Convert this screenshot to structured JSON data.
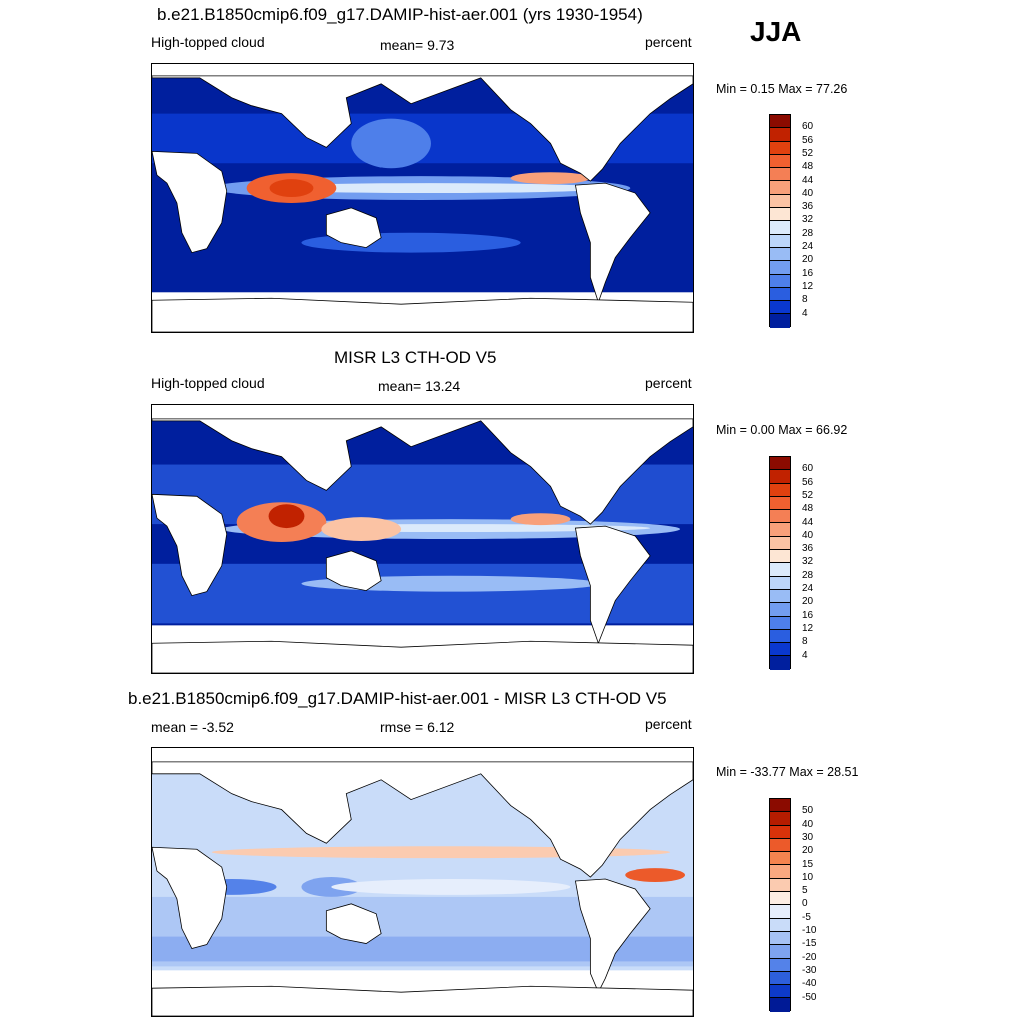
{
  "season": "JJA",
  "panels": [
    {
      "title": "b.e21.B1850cmip6.f09_g17.DAMIP-hist-aer.001 (yrs 1930-1954)",
      "left_label": "High-topped cloud",
      "center_label": "mean=   9.73",
      "unit": "percent",
      "minmax": "Min =   0.15 Max =  77.26",
      "colorbar_labels": [
        "60",
        "56",
        "52",
        "48",
        "44",
        "40",
        "36",
        "32",
        "28",
        "24",
        "20",
        "16",
        "12",
        "8",
        "4"
      ],
      "colors": [
        "#8b0b00",
        "#c12200",
        "#e0410f",
        "#f06030",
        "#f47f55",
        "#f8a07a",
        "#fbc3a4",
        "#fde6d4",
        "#dbeafb",
        "#bcd6fa",
        "#99bcf5",
        "#729df0",
        "#4e7fea",
        "#2a5ee0",
        "#0a38cf",
        "#001f9e"
      ]
    },
    {
      "title": "MISR L3 CTH-OD V5",
      "left_label": "High-topped cloud",
      "center_label": "mean=  13.24",
      "unit": "percent",
      "minmax": "Min =   0.00 Max =  66.92",
      "colorbar_labels": [
        "60",
        "56",
        "52",
        "48",
        "44",
        "40",
        "36",
        "32",
        "28",
        "24",
        "20",
        "16",
        "12",
        "8",
        "4"
      ],
      "colors": [
        "#8b0b00",
        "#c12200",
        "#e0410f",
        "#f06030",
        "#f47f55",
        "#f8a07a",
        "#fbc3a4",
        "#fde6d4",
        "#dbeafb",
        "#bcd6fa",
        "#99bcf5",
        "#729df0",
        "#4e7fea",
        "#2a5ee0",
        "#0a38cf",
        "#001f9e"
      ]
    },
    {
      "title": "b.e21.B1850cmip6.f09_g17.DAMIP-hist-aer.001 - MISR L3 CTH-OD V5",
      "left_label": "mean =  -3.52",
      "center_label": "rmse =   6.12",
      "unit": "percent",
      "minmax": "Min = -33.77 Max =  28.51",
      "colorbar_labels": [
        "50",
        "40",
        "30",
        "20",
        "15",
        "10",
        "5",
        "0",
        "-5",
        "-10",
        "-15",
        "-20",
        "-30",
        "-40",
        "-50"
      ],
      "colors": [
        "#8b0b00",
        "#b51c00",
        "#d8320a",
        "#ec5a2a",
        "#f5844f",
        "#f9a880",
        "#fbcbb0",
        "#fdeee4",
        "#e6eefc",
        "#c9dcf9",
        "#a6c2f4",
        "#7ea3ef",
        "#5482e9",
        "#2d5fdc",
        "#0d3ac9",
        "#001a96"
      ]
    }
  ]
}
